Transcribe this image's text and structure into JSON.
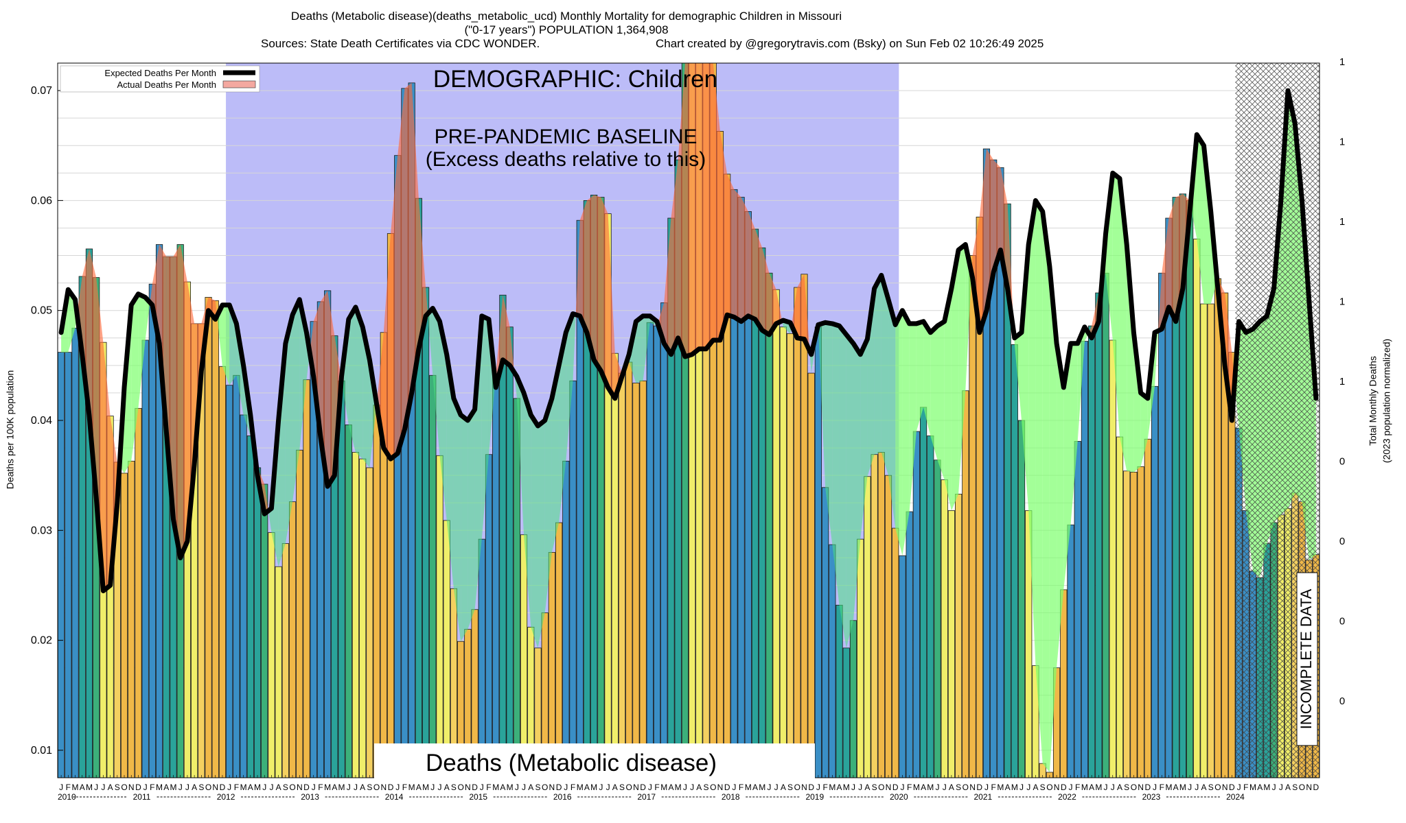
{
  "header": {
    "line1": "Deaths (Metabolic disease)(deaths_metabolic_ucd) Monthly Mortality for demographic Children in Missouri",
    "line2": "(\"0-17 years\") POPULATION 1,364,908",
    "line3": "Sources: State Death Certificates via CDC WONDER.",
    "line4": "Chart created by @gregorytravis.com (Bsky) on Sun Feb 02 10:26:49 2025"
  },
  "chart_data": {
    "type": "bar",
    "ylabel": "Deaths per 100K population",
    "y2label": "Total Monthly Deaths",
    "y2label_sub": "(2023 population normalized)",
    "ylim": [
      0.0075,
      0.0725
    ],
    "y_ticks": [
      0.01,
      0.02,
      0.03,
      0.04,
      0.05,
      0.06,
      0.07
    ],
    "y_tick_labels": [
      "0.01",
      "0.02",
      "0.03",
      "0.04",
      "0.05",
      "0.06",
      "0.07"
    ],
    "y2_tick_labels": [
      "1",
      "1",
      "1",
      "1",
      "1",
      "0",
      "0",
      "0",
      "0"
    ],
    "month_letters": [
      "J",
      "F",
      "M",
      "A",
      "M",
      "J",
      "J",
      "A",
      "S",
      "O",
      "N",
      "D"
    ],
    "years": [
      "2010",
      "2011",
      "2012",
      "2013",
      "2014",
      "2015",
      "2016",
      "2017",
      "2018",
      "2019",
      "2020",
      "2021",
      "2022",
      "2023",
      "2024"
    ],
    "legend": [
      {
        "label": "Expected Deaths Per Month",
        "color": "#000000"
      },
      {
        "label": "Actual Deaths Per Month",
        "color": "#f4a8a0"
      }
    ],
    "annotations": {
      "demographic": "DEMOGRAPHIC: Children",
      "baseline_line1": "PRE-PANDEMIC BASELINE",
      "baseline_line2": "(Excess deaths relative to this)",
      "cause_banner": "Deaths (Metabolic disease)",
      "incomplete": "INCOMPLETE DATA"
    },
    "season_colors": [
      "#3a8fc6",
      "#3a8fc6",
      "#3a8fc6",
      "#2aa39a",
      "#2aa39a",
      "#3cb07a",
      "#f0ee6a",
      "#f0ee6a",
      "#f4d060",
      "#f0b848",
      "#f0b848",
      "#f0b848"
    ],
    "actual_deaths": [
      0.0462,
      0.0462,
      0.0484,
      0.0531,
      0.0556,
      0.053,
      0.0471,
      0.0404,
      0.0362,
      0.0352,
      0.0363,
      0.0411,
      0.0473,
      0.0524,
      0.056,
      0.0549,
      0.0549,
      0.056,
      0.0526,
      0.0488,
      0.0488,
      0.0512,
      0.0509,
      0.0449,
      0.0432,
      0.0441,
      0.0405,
      0.0386,
      0.0357,
      0.0342,
      0.0298,
      0.0267,
      0.0288,
      0.0326,
      0.0373,
      0.0437,
      0.049,
      0.0508,
      0.0518,
      0.0477,
      0.0436,
      0.0396,
      0.0371,
      0.0365,
      0.0357,
      0.0414,
      0.048,
      0.057,
      0.0641,
      0.0702,
      0.0707,
      0.0602,
      0.0521,
      0.0441,
      0.0368,
      0.0309,
      0.0247,
      0.0199,
      0.021,
      0.0228,
      0.0292,
      0.0369,
      0.0441,
      0.0514,
      0.0485,
      0.042,
      0.0296,
      0.0212,
      0.0193,
      0.0225,
      0.028,
      0.0307,
      0.0363,
      0.0436,
      0.0582,
      0.06,
      0.0605,
      0.0603,
      0.0588,
      0.0461,
      0.0443,
      0.0453,
      0.0434,
      0.0436,
      0.0489,
      0.0486,
      0.0507,
      0.0584,
      0.0637,
      0.0725,
      0.0725,
      0.0725,
      0.0725,
      0.0725,
      0.0663,
      0.0624,
      0.061,
      0.0603,
      0.059,
      0.0574,
      0.0557,
      0.0534,
      0.0519,
      0.0485,
      0.0479,
      0.0521,
      0.0533,
      0.0443,
      0.0485,
      0.0339,
      0.0287,
      0.0232,
      0.0193,
      0.0218,
      0.0292,
      0.0349,
      0.0369,
      0.0371,
      0.035,
      0.0302,
      0.0277,
      0.0317,
      0.039,
      0.0412,
      0.0386,
      0.0364,
      0.0346,
      0.0318,
      0.0333,
      0.0427,
      0.055,
      0.0585,
      0.0647,
      0.0637,
      0.063,
      0.0597,
      0.0469,
      0.04,
      0.0318,
      0.0177,
      0.0088,
      0.008,
      0.0175,
      0.0246,
      0.0305,
      0.0381,
      0.0472,
      0.0486,
      0.0516,
      0.0534,
      0.0473,
      0.0385,
      0.0354,
      0.0353,
      0.0358,
      0.0383,
      0.0431,
      0.0534,
      0.0584,
      0.0603,
      0.0606,
      0.06,
      0.0565,
      0.0506,
      0.0506,
      0.0529,
      0.0516,
      0.0462,
      0.0393,
      0.0318,
      0.0263,
      0.0257,
      0.0288,
      0.0307,
      0.0314,
      0.032,
      0.0334,
      0.0326,
      0.0273,
      0.0278
    ],
    "expected_deaths": [
      0.048,
      0.0519,
      0.051,
      0.046,
      0.0405,
      0.033,
      0.0245,
      0.025,
      0.0325,
      0.043,
      0.0505,
      0.0515,
      0.0512,
      0.0505,
      0.047,
      0.039,
      0.031,
      0.0275,
      0.029,
      0.036,
      0.0445,
      0.05,
      0.0492,
      0.0505,
      0.0505,
      0.0488,
      0.045,
      0.0405,
      0.035,
      0.0315,
      0.032,
      0.04,
      0.047,
      0.0496,
      0.051,
      0.048,
      0.044,
      0.0385,
      0.034,
      0.035,
      0.044,
      0.0492,
      0.0503,
      0.0485,
      0.0455,
      0.0415,
      0.0375,
      0.0365,
      0.037,
      0.0392,
      0.0425,
      0.0465,
      0.0495,
      0.0502,
      0.049,
      0.046,
      0.042,
      0.0405,
      0.04,
      0.041,
      0.0495,
      0.0492,
      0.043,
      0.0455,
      0.045,
      0.044,
      0.0425,
      0.0405,
      0.0395,
      0.04,
      0.042,
      0.045,
      0.048,
      0.0497,
      0.0495,
      0.048,
      0.0455,
      0.0445,
      0.043,
      0.042,
      0.044,
      0.046,
      0.049,
      0.0495,
      0.0495,
      0.049,
      0.047,
      0.046,
      0.0475,
      0.0458,
      0.046,
      0.0465,
      0.0465,
      0.0473,
      0.0473,
      0.0496,
      0.0494,
      0.049,
      0.0495,
      0.0492,
      0.0482,
      0.0478,
      0.0488,
      0.0491,
      0.0489,
      0.0475,
      0.0474,
      0.046,
      0.0487,
      0.0489,
      0.0488,
      0.0486,
      0.0478,
      0.047,
      0.046,
      0.0474,
      0.052,
      0.0532,
      0.051,
      0.0487,
      0.05,
      0.0488,
      0.0488,
      0.049,
      0.048,
      0.0486,
      0.049,
      0.052,
      0.0555,
      0.056,
      0.053,
      0.048,
      0.05,
      0.0535,
      0.0555,
      0.052,
      0.0475,
      0.048,
      0.056,
      0.06,
      0.059,
      0.054,
      0.047,
      0.043,
      0.047,
      0.047,
      0.0485,
      0.0475,
      0.049,
      0.057,
      0.0625,
      0.062,
      0.056,
      0.048,
      0.0425,
      0.042,
      0.048,
      0.0483,
      0.0503,
      0.049,
      0.052,
      0.059,
      0.066,
      0.065,
      0.059,
      0.052,
      0.045,
      0.04,
      0.049,
      0.048,
      0.0483,
      0.049,
      0.0495,
      0.052,
      0.06,
      0.07,
      0.067,
      0.06,
      0.051,
      0.042
    ]
  }
}
